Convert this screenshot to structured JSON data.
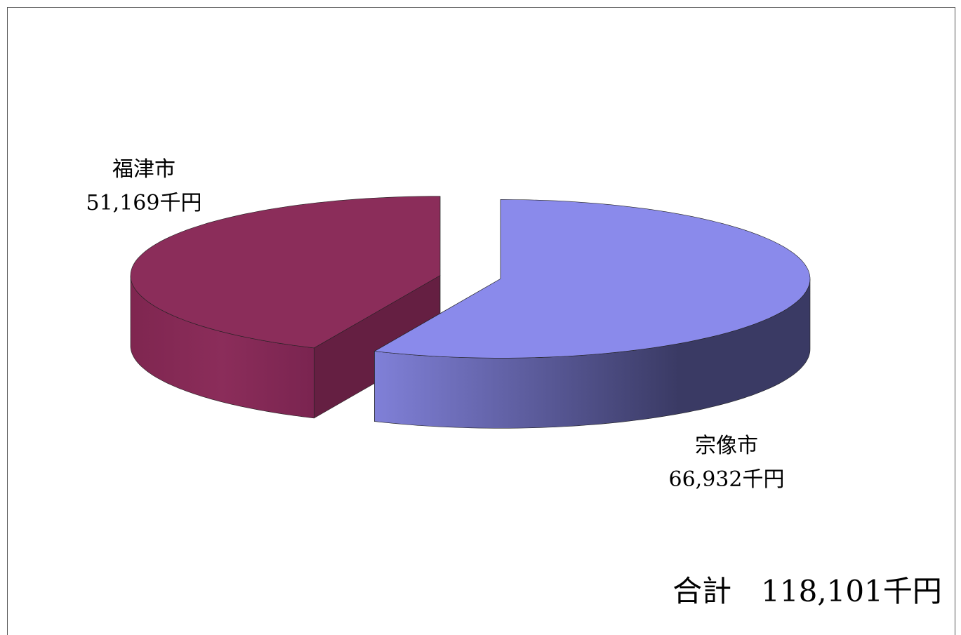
{
  "chart_data": {
    "type": "pie3d",
    "categories": [
      "宗像市",
      "福津市"
    ],
    "values": [
      66932,
      51169
    ],
    "value_labels": [
      "66,932千円",
      "51,169千円"
    ],
    "colors": [
      "#8a8aeb",
      "#8b2d5a"
    ],
    "annotation": "合計　118,101千円"
  }
}
